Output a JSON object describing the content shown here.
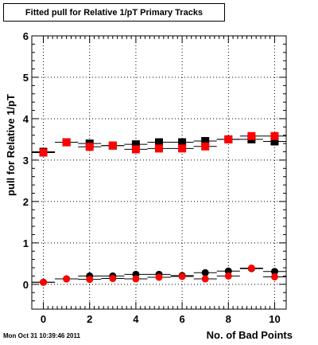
{
  "title": "Fitted pull for Relative 1/pT Primary Tracks",
  "timestamp": "Mon Oct 31 10:39:46 2011",
  "chart_data": {
    "type": "scatter",
    "title": "Fitted pull for Relative 1/pT Primary Tracks",
    "xlabel": "No. of Bad Points",
    "ylabel": "pull for Relative 1/pT",
    "xlim": [
      -0.5,
      10.5
    ],
    "ylim": [
      -0.6,
      6
    ],
    "x_ticks": [
      0,
      2,
      4,
      6,
      8,
      10
    ],
    "y_ticks": [
      0,
      1,
      2,
      3,
      4,
      5,
      6
    ],
    "grid": true,
    "series": [
      {
        "marker": "square",
        "color": "#000000",
        "x": [
          0,
          1,
          2,
          3,
          4,
          5,
          6,
          7,
          8,
          9,
          10
        ],
        "y": [
          3.2,
          3.43,
          3.4,
          3.35,
          3.38,
          3.43,
          3.43,
          3.46,
          3.5,
          3.5,
          3.45
        ]
      },
      {
        "marker": "square",
        "color": "#ff0000",
        "x": [
          0,
          1,
          2,
          3,
          4,
          5,
          6,
          7,
          8,
          9,
          10
        ],
        "y": [
          3.18,
          3.43,
          3.32,
          3.35,
          3.26,
          3.28,
          3.28,
          3.33,
          3.5,
          3.58,
          3.58
        ]
      },
      {
        "marker": "circle",
        "color": "#000000",
        "x": [
          0,
          1,
          2,
          3,
          4,
          5,
          6,
          7,
          8,
          9,
          10
        ],
        "y": [
          0.05,
          0.13,
          0.2,
          0.2,
          0.24,
          0.24,
          0.21,
          0.28,
          0.32,
          0.38,
          0.31
        ]
      },
      {
        "marker": "circle",
        "color": "#ff0000",
        "x": [
          0,
          1,
          2,
          3,
          4,
          5,
          6,
          7,
          8,
          9,
          10
        ],
        "y": [
          0.05,
          0.13,
          0.12,
          0.14,
          0.13,
          0.17,
          0.19,
          0.13,
          0.2,
          0.39,
          0.18
        ]
      }
    ]
  }
}
